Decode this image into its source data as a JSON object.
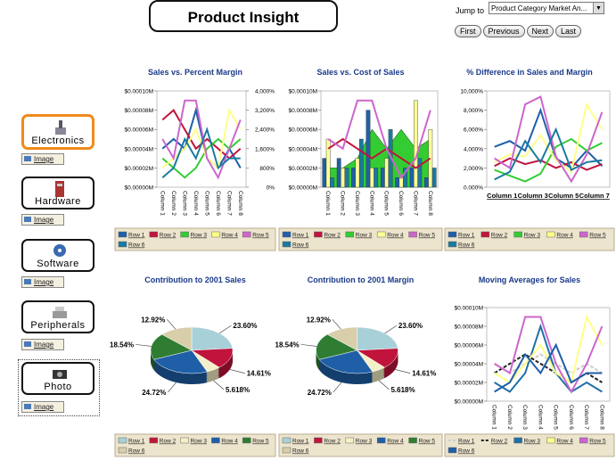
{
  "header": {
    "title": "Product Insight",
    "jump_label": "Jump to",
    "jump_value": "Product Category Market An...",
    "buttons": [
      "First",
      "Previous",
      "Next",
      "Last"
    ]
  },
  "nav": [
    {
      "label": "Electronics",
      "link": "Image"
    },
    {
      "label": "Hardware",
      "link": "Image"
    },
    {
      "label": "Software",
      "link": "Image"
    },
    {
      "label": "Peripherals",
      "link": "Image"
    },
    {
      "label": "Photo",
      "link": "Image"
    }
  ],
  "chart_data": [
    {
      "type": "line",
      "title": "Sales vs. Percent Margin",
      "categories": [
        "Column 1",
        "Column 2",
        "Column 3",
        "Column 4",
        "Column 5",
        "Column 6",
        "Column 7",
        "Column 8"
      ],
      "ylim": [
        0,
        0.0001
      ],
      "yticks": [
        {
          "value": 0,
          "label": "$0.00000M"
        },
        {
          "value": 2e-05,
          "label": "$0.00002M"
        },
        {
          "value": 4e-05,
          "label": "$0.00004M"
        },
        {
          "value": 6e-05,
          "label": "$0.00006M"
        },
        {
          "value": 8e-05,
          "label": "$0.00008M"
        },
        {
          "value": 0.0001,
          "label": "$0.00010M"
        }
      ],
      "y2lim": [
        0,
        4000
      ],
      "y2ticks": [
        {
          "value": 0,
          "label": "0%"
        },
        {
          "value": 800,
          "label": "800%"
        },
        {
          "value": 1600,
          "label": "1,600%"
        },
        {
          "value": 2400,
          "label": "2,400%"
        },
        {
          "value": 3200,
          "label": "3,200%"
        },
        {
          "value": 4000,
          "label": "4,000%"
        }
      ],
      "series": [
        {
          "name": "Row 1",
          "color": "#1f5fa8",
          "values": [
            4e-05,
            5e-05,
            4e-05,
            8e-05,
            3e-05,
            2e-05,
            4e-05,
            2e-05
          ]
        },
        {
          "name": "Row 2",
          "color": "#c0143c",
          "values": [
            7e-05,
            8e-05,
            6e-05,
            4e-05,
            5e-05,
            4e-05,
            3e-05,
            4e-05
          ]
        },
        {
          "name": "Row 3",
          "color": "#33cc33",
          "values": [
            3e-05,
            2e-05,
            1e-05,
            2e-05,
            4e-05,
            5e-05,
            4e-05,
            5e-05
          ]
        },
        {
          "name": "Row 4",
          "color": "#ffff88",
          "values": [
            2e-05,
            3e-05,
            4e-05,
            6e-05,
            3e-05,
            2e-05,
            8e-05,
            6e-05
          ]
        },
        {
          "name": "Row 5",
          "color": "#cc66cc",
          "values": [
            5e-05,
            3e-05,
            9e-05,
            9e-05,
            3e-05,
            1e-05,
            4e-05,
            7e-05
          ]
        },
        {
          "name": "Row 6",
          "color": "#1a7aa0",
          "values": [
            1e-05,
            2e-05,
            5e-05,
            3e-05,
            6e-05,
            2e-05,
            3e-05,
            3e-05
          ]
        }
      ]
    },
    {
      "type": "combo",
      "title": "Sales vs. Cost of Sales",
      "categories": [
        "Column 1",
        "Column 2",
        "Column 3",
        "Column 4",
        "Column 5",
        "Column 6",
        "Column 7",
        "Column 8"
      ],
      "ylim": [
        0,
        0.0001
      ],
      "yticks": [
        {
          "value": 0,
          "label": "$0.00000M"
        },
        {
          "value": 2e-05,
          "label": "$0.00002M"
        },
        {
          "value": 4e-05,
          "label": "$0.00004M"
        },
        {
          "value": 6e-05,
          "label": "$0.00006M"
        },
        {
          "value": 8e-05,
          "label": "$0.00008M"
        },
        {
          "value": 0.0001,
          "label": "$0.00010M"
        }
      ],
      "series": [
        {
          "name": "Row 1",
          "color": "#1f5fa8",
          "kind": "bar",
          "values": [
            3e-05,
            3e-05,
            2e-05,
            8e-05,
            2e-05,
            1e-05,
            2e-05,
            1e-05
          ]
        },
        {
          "name": "Row 2",
          "color": "#c0143c",
          "kind": "line",
          "values": [
            4e-05,
            5e-05,
            4e-05,
            3e-05,
            4e-05,
            3e-05,
            2e-05,
            3e-05
          ]
        },
        {
          "name": "Row 3",
          "color": "#33cc33",
          "kind": "area",
          "values": [
            2e-05,
            2e-05,
            3e-05,
            6e-05,
            4e-05,
            6e-05,
            4e-05,
            5e-05
          ]
        },
        {
          "name": "Row 4",
          "color": "#ffff99",
          "kind": "bar",
          "values": [
            5e-05,
            2e-05,
            3e-05,
            2e-05,
            3e-05,
            1e-05,
            9e-05,
            6e-05
          ]
        },
        {
          "name": "Row 5",
          "color": "#cc66cc",
          "kind": "line",
          "values": [
            5e-05,
            4e-05,
            9e-05,
            9e-05,
            4e-05,
            1e-05,
            3e-05,
            8e-05
          ]
        },
        {
          "name": "Row 6",
          "color": "#1a7aa0",
          "kind": "bar",
          "values": [
            1e-05,
            2e-05,
            5e-05,
            2e-05,
            6e-05,
            2e-05,
            3e-05,
            2e-05
          ]
        }
      ]
    },
    {
      "type": "line",
      "title": "% Difference in Sales and Margin",
      "categories": [
        "Column 1",
        null,
        "Column 3",
        null,
        "Column 5",
        null,
        "Column 7",
        null
      ],
      "ylim": [
        0,
        10000
      ],
      "yticks": [
        {
          "value": 0,
          "label": "0.000%"
        },
        {
          "value": 2000,
          "label": "2,000%"
        },
        {
          "value": 4000,
          "label": "4,000%"
        },
        {
          "value": 6000,
          "label": "6,000%"
        },
        {
          "value": 8000,
          "label": "8,000%"
        },
        {
          "value": 10000,
          "label": "10,000%"
        }
      ],
      "series": [
        {
          "name": "Row 1",
          "color": "#1f5fa8",
          "values": [
            4200,
            4800,
            3800,
            8000,
            3000,
            2000,
            3800,
            2200
          ]
        },
        {
          "name": "Row 2",
          "color": "#c0143c",
          "values": [
            2200,
            3000,
            2400,
            2800,
            2000,
            2600,
            1800,
            2400
          ]
        },
        {
          "name": "Row 3",
          "color": "#33cc33",
          "values": [
            1800,
            1200,
            600,
            1400,
            4200,
            5000,
            3800,
            4600
          ]
        },
        {
          "name": "Row 4",
          "color": "#ffff88",
          "values": [
            2600,
            3400,
            3200,
            5400,
            2800,
            1600,
            8600,
            6000
          ]
        },
        {
          "name": "Row 5",
          "color": "#cc66cc",
          "values": [
            3000,
            2000,
            8600,
            9400,
            3200,
            600,
            3400,
            7800
          ]
        },
        {
          "name": "Row 6",
          "color": "#1a7aa0",
          "values": [
            800,
            1600,
            4800,
            2600,
            6000,
            1800,
            2600,
            2800
          ]
        }
      ]
    },
    {
      "type": "pie",
      "title": "Contribution to 2001 Sales",
      "categories": [
        "Row 1",
        "Row 2",
        "Row 3",
        "Row 4",
        "Row 5",
        "Row 6"
      ],
      "colors": [
        "#a8d0d8",
        "#c0143c",
        "#f4f0c8",
        "#1f5fa8",
        "#2e7d32",
        "#d8ceaa"
      ],
      "values": [
        23.6,
        14.61,
        5.618,
        24.72,
        18.54,
        12.92
      ],
      "value_labels": [
        "23.60%",
        "14.61%",
        "5.618%",
        "24.72%",
        "18.54%",
        "12.92%"
      ]
    },
    {
      "type": "pie",
      "title": "Contribution to 2001 Margin",
      "categories": [
        "Row 1",
        "Row 2",
        "Row 3",
        "Row 4",
        "Row 5",
        "Row 6"
      ],
      "colors": [
        "#a8d0d8",
        "#c0143c",
        "#f4f0c8",
        "#1f5fa8",
        "#2e7d32",
        "#d8ceaa"
      ],
      "values": [
        23.6,
        14.61,
        5.618,
        24.72,
        18.54,
        12.92
      ],
      "value_labels": [
        "23.60%",
        "14.61%",
        "5.618%",
        "24.72%",
        "18.54%",
        "12.92%"
      ]
    },
    {
      "type": "line",
      "title": "Moving Averages for Sales",
      "categories": [
        "Column 1",
        "Column 2",
        "Column 3",
        "Column 4",
        "Column 5",
        "Column 6",
        "Column 7",
        "Column 8"
      ],
      "ylim": [
        0,
        0.0001
      ],
      "yticks": [
        {
          "value": 0,
          "label": "$0.00000M"
        },
        {
          "value": 2e-05,
          "label": "$0.00002M"
        },
        {
          "value": 4e-05,
          "label": "$0.00004M"
        },
        {
          "value": 6e-05,
          "label": "$0.00006M"
        },
        {
          "value": 8e-05,
          "label": "$0.00008M"
        },
        {
          "value": 0.0001,
          "label": "$0.00010M"
        }
      ],
      "series": [
        {
          "name": "Row 1",
          "color": "#cccccc",
          "dashed": true,
          "values": [
            4e-05,
            3e-05,
            4e-05,
            5e-05,
            4e-05,
            3e-05,
            4e-05,
            3e-05
          ]
        },
        {
          "name": "Row 2",
          "color": "#222222",
          "dashed": true,
          "values": [
            3e-05,
            4e-05,
            5e-05,
            4e-05,
            3e-05,
            2e-05,
            3e-05,
            2e-05
          ]
        },
        {
          "name": "Row 3",
          "color": "#1f6fa8",
          "values": [
            2e-05,
            1e-05,
            3e-05,
            8e-05,
            3e-05,
            1e-05,
            2e-05,
            1e-05
          ]
        },
        {
          "name": "Row 4",
          "color": "#ffff88",
          "values": [
            3e-05,
            2e-05,
            4e-05,
            6e-05,
            3e-05,
            2e-05,
            9e-05,
            6e-05
          ]
        },
        {
          "name": "Row 5",
          "color": "#cc66cc",
          "values": [
            4e-05,
            3e-05,
            9e-05,
            9e-05,
            4e-05,
            1e-05,
            4e-05,
            8e-05
          ]
        },
        {
          "name": "Row 6",
          "color": "#1f5fa8",
          "values": [
            1e-05,
            2e-05,
            5e-05,
            3e-05,
            6e-05,
            2e-05,
            3e-05,
            3e-05
          ]
        }
      ]
    }
  ]
}
